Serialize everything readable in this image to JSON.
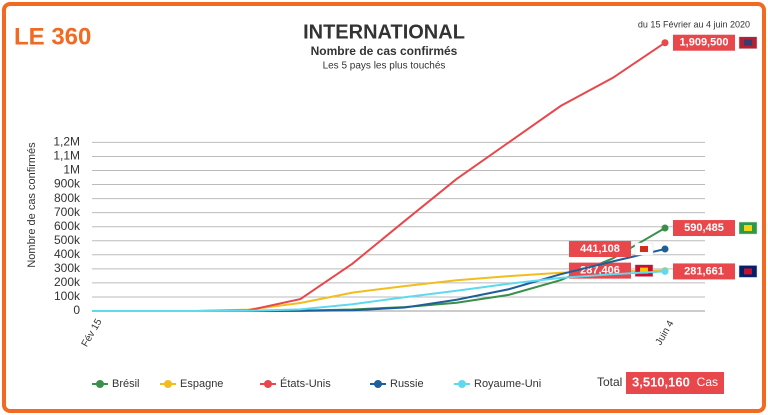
{
  "chart_data": {
    "type": "line",
    "logo": "LE 360",
    "title": "INTERNATIONAL",
    "subtitle": "Nombre de cas confirmés",
    "subtitle2": "Les 5 pays les plus touchés",
    "date_range": "du 15 Février au 4 juin 2020",
    "y_label": "Nombre de cas confirmés",
    "categories": [
      "Fév 15",
      null,
      null,
      null,
      null,
      null,
      null,
      null,
      null,
      null,
      null,
      "Juin 4"
    ],
    "series": [
      {
        "name": "Brésil",
        "color": "#3a8f4a",
        "values": [
          0,
          1,
          13,
          234,
          2900,
          11000,
          28000,
          59000,
          115000,
          220000,
          375000,
          590485
        ],
        "value_labels": [
          null,
          null,
          null,
          null,
          null,
          null,
          null,
          null,
          null,
          null,
          null,
          "590,485"
        ]
      },
      {
        "name": "Espagne",
        "color": "#f2bd1d",
        "values": [
          2,
          2,
          400,
          9900,
          57000,
          131000,
          177000,
          219000,
          248000,
          272000,
          282000,
          287406
        ],
        "value_labels": [
          null,
          null,
          null,
          null,
          null,
          null,
          null,
          null,
          null,
          null,
          null,
          "287,406"
        ]
      },
      {
        "name": "États-Unis",
        "color": "#e8474c",
        "values": [
          15,
          15,
          300,
          4600,
          85000,
          337000,
          640000,
          940000,
          1200000,
          1460000,
          1660000,
          1909500
        ],
        "value_labels": [
          null,
          null,
          null,
          null,
          null,
          null,
          null,
          null,
          null,
          null,
          null,
          "1,909,500"
        ]
      },
      {
        "name": "Russie",
        "color": "#1f5f99",
        "values": [
          2,
          2,
          4,
          90,
          840,
          5400,
          24500,
          80000,
          155000,
          262000,
          353000,
          441108
        ],
        "value_labels": [
          null,
          null,
          null,
          null,
          null,
          null,
          null,
          null,
          null,
          null,
          null,
          "441,108"
        ]
      },
      {
        "name": "Royaume-Uni",
        "color": "#5fd9f0",
        "values": [
          9,
          13,
          160,
          1500,
          11700,
          48000,
          98000,
          144000,
          194000,
          236000,
          262000,
          281661
        ],
        "value_labels": [
          null,
          null,
          null,
          null,
          null,
          null,
          null,
          null,
          null,
          null,
          null,
          "281,661"
        ]
      }
    ],
    "ylim": [
      0,
      2000000
    ],
    "yticks": [
      0,
      {
        "value": 100000,
        "label": "100k"
      },
      {
        "value": 200000,
        "label": "200k"
      },
      {
        "value": 300000,
        "label": "300k"
      },
      {
        "value": 400000,
        "label": "400k"
      },
      {
        "value": 500000,
        "label": "500k"
      },
      {
        "value": 600000,
        "label": "600k"
      },
      {
        "value": 700000,
        "label": "700k"
      },
      {
        "value": 800000,
        "label": "800k"
      },
      {
        "value": 900000,
        "label": "900k"
      },
      {
        "value": 1000000,
        "label": "1M"
      },
      {
        "value": 1100000,
        "label": "1,1M"
      },
      {
        "value": 1200000,
        "label": "1,2M"
      }
    ],
    "grid": true,
    "total_label": "Total",
    "total_value": "3,510,160",
    "total_unit": "Cas"
  }
}
